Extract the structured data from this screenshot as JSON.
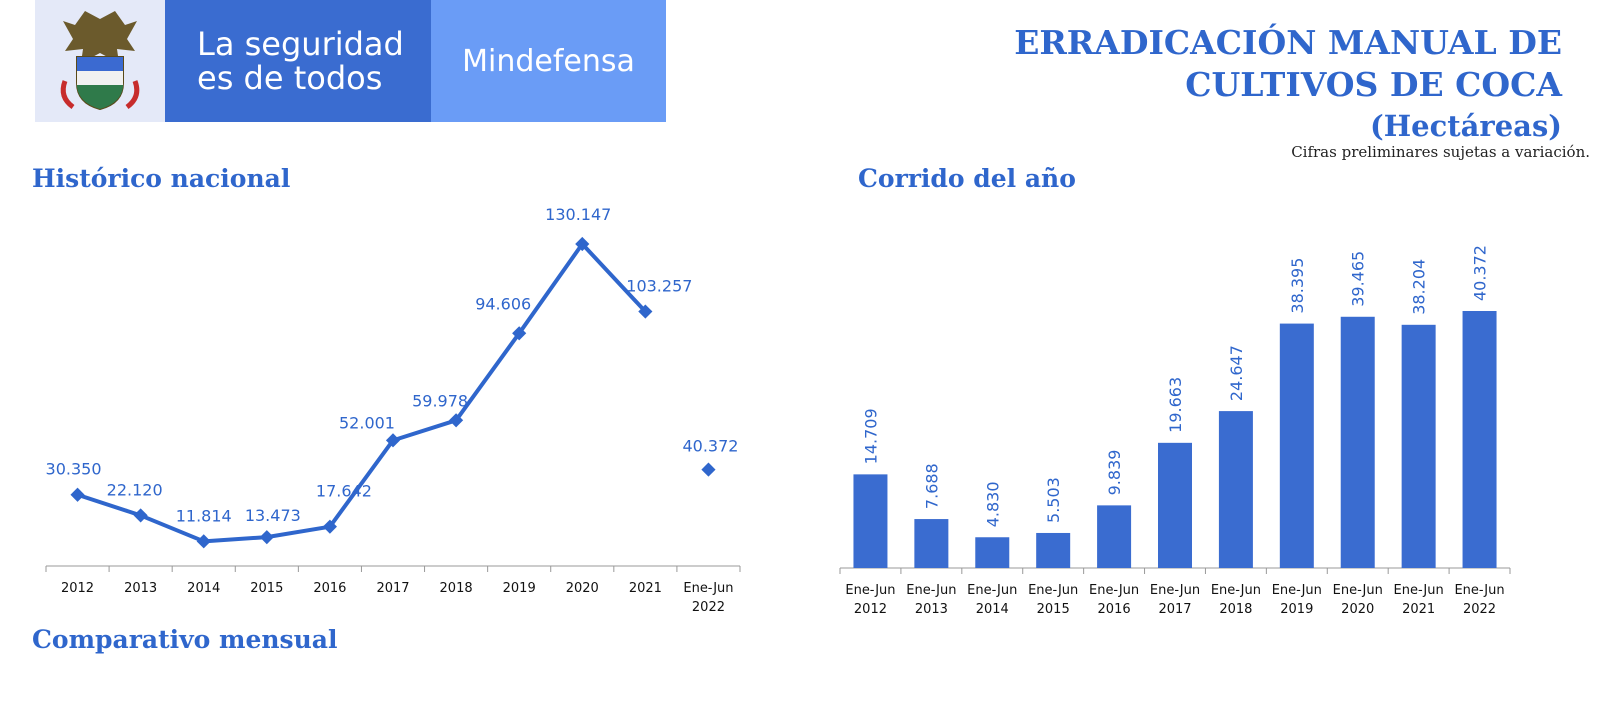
{
  "header": {
    "slogan_line1": "La seguridad",
    "slogan_line2": "es de todos",
    "ministry": "Mindefensa",
    "title_line1": "ERRADICACIÓN MANUAL DE",
    "title_line2": "CULTIVOS DE COCA",
    "title_line3": "(Hectáreas)",
    "note": "Cifras preliminares sujetas a variación."
  },
  "sections": {
    "historico": "Histórico nacional",
    "corrido": "Corrido del año",
    "comparativo": "Comparativo mensual"
  },
  "colors": {
    "accent": "#2f66cc",
    "bar": "#3a6cd0",
    "crest_bg": "#e4e9f8",
    "slogan_bg": "#3a6cd0",
    "ministry_bg": "#6a9cf6"
  },
  "chart_data": [
    {
      "type": "line",
      "title": "Histórico nacional",
      "categories": [
        "2012",
        "2013",
        "2014",
        "2015",
        "2016",
        "2017",
        "2018",
        "2019",
        "2020",
        "2021",
        "Ene-Jun 2022"
      ],
      "values": [
        30350,
        22120,
        11814,
        13473,
        17642,
        52001,
        59978,
        94606,
        130147,
        103257,
        40372
      ],
      "labels": [
        "30.350",
        "22.120",
        "11.814",
        "13.473",
        "17.642",
        "52.001",
        "59.978",
        "94.606",
        "130.147",
        "103.257",
        "40.372"
      ],
      "note": "Last point (Ene-Jun 2022) drawn as isolated marker, not connected to the line"
    },
    {
      "type": "bar",
      "title": "Corrido del año",
      "categories": [
        "Ene-Jun 2012",
        "Ene-Jun 2013",
        "Ene-Jun 2014",
        "Ene-Jun 2015",
        "Ene-Jun 2016",
        "Ene-Jun 2017",
        "Ene-Jun 2018",
        "Ene-Jun 2019",
        "Ene-Jun 2020",
        "Ene-Jun 2021",
        "Ene-Jun 2022"
      ],
      "values": [
        14709,
        7688,
        4830,
        5503,
        9839,
        19663,
        24647,
        38395,
        39465,
        38204,
        40372
      ],
      "labels": [
        "14.709",
        "7.688",
        "4.830",
        "5.503",
        "9.839",
        "19.663",
        "24.647",
        "38.395",
        "39.465",
        "38.204",
        "40.372"
      ]
    }
  ]
}
